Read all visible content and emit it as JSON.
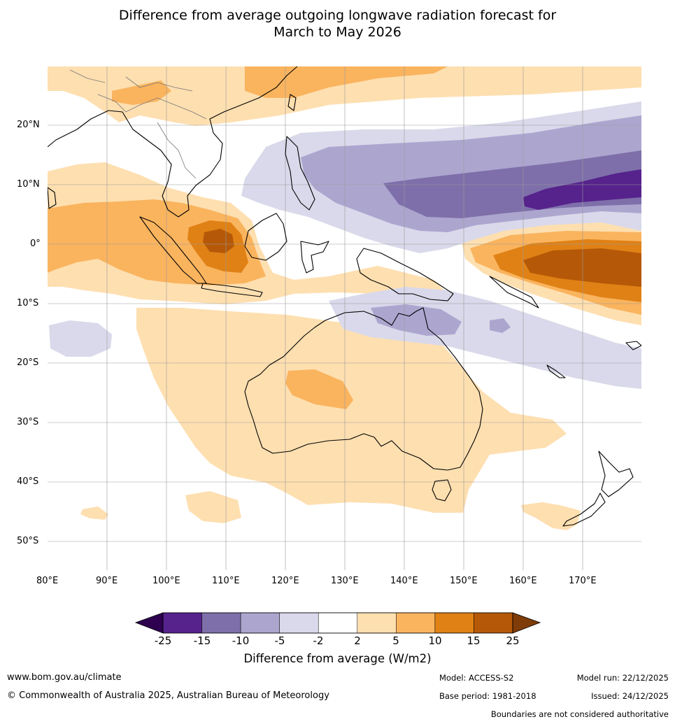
{
  "title": {
    "line1": "Difference from average outgoing longwave radiation forecast for",
    "line2": "March to May 2026"
  },
  "map": {
    "lat_labels": [
      "20°N",
      "10°N",
      "0°",
      "10°S",
      "20°S",
      "30°S",
      "40°S",
      "50°S"
    ],
    "lon_labels": [
      "80°E",
      "90°E",
      "100°E",
      "110°E",
      "120°E",
      "130°E",
      "140°E",
      "150°E",
      "160°E",
      "170°E"
    ],
    "lon_range": [
      80,
      180
    ],
    "lat_range": [
      -55,
      30
    ]
  },
  "colorbar": {
    "ticks": [
      "-25",
      "-15",
      "-10",
      "-5",
      "-2",
      "2",
      "5",
      "10",
      "15",
      "25"
    ],
    "colors": [
      "#56228c",
      "#7e6faa",
      "#aca6cf",
      "#d9d9eb",
      "#ffffff",
      "#fedfb0",
      "#fab45e",
      "#e08116",
      "#b55908"
    ],
    "extend_low_color": "#2d0050",
    "extend_high_color": "#7f3c09",
    "label": "Difference from average (W/m2)"
  },
  "footer": {
    "website": "www.bom.gov.au/climate",
    "copyright": "© Commonwealth of Australia 2025, Australian Bureau of Meteorology",
    "model": "Model: ACCESS-S2",
    "base_period": "Base period: 1981-2018",
    "model_run": "Model run: 22/12/2025",
    "issued": "Issued: 24/12/2025",
    "disclaimer": "Boundaries are not considered authoritative"
  }
}
